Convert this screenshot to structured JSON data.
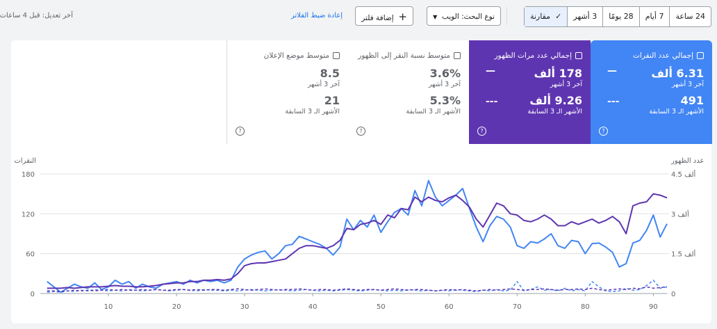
{
  "toolbar": {
    "ranges": [
      "24 ساعة",
      "7 أيام",
      "28 يومًا",
      "3 أشهر"
    ],
    "compare": "مقارنة",
    "search_type": "نوع البحث: الويب",
    "add_filter": "إضافة فلتر",
    "reset": "إعادة ضبط الفلاتر",
    "last_update": "آخر تعديل: قبل 4 ساعات"
  },
  "cards": [
    {
      "title": "إجمالي عدد النقرات",
      "value": "6.31 ألف",
      "period": "آخر 3 أشهر",
      "compare_value": "491",
      "compare_period": "الأشهر الـ 3 السابقة"
    },
    {
      "title": "إجمالي عدد مرات الظهور",
      "value": "178 ألف",
      "period": "آخر 3 أشهر",
      "compare_value": "9.26 ألف",
      "compare_period": "الأشهر الـ 3 السابقة"
    },
    {
      "title": "متوسط نسبة النقر إلى الظهور",
      "value": "3.6%",
      "period": "آخر 3 أشهر",
      "compare_value": "5.3%",
      "compare_period": "الأشهر الـ 3 السابقة"
    },
    {
      "title": "متوسط موضع الإعلان",
      "value": "8.5",
      "period": "آخر 3 أشهر",
      "compare_value": "21",
      "compare_period": "الأشهر الـ 3 السابقة"
    }
  ],
  "chart": {
    "type": "line",
    "ylabel": "النقرات",
    "y2label": "عدد الظهور",
    "x": [
      1,
      2,
      3,
      4,
      5,
      6,
      7,
      8,
      9,
      10,
      11,
      12,
      13,
      14,
      15,
      16,
      17,
      18,
      19,
      20,
      21,
      22,
      23,
      24,
      25,
      26,
      27,
      28,
      29,
      30,
      31,
      32,
      33,
      34,
      35,
      36,
      37,
      38,
      39,
      40,
      41,
      42,
      43,
      44,
      45,
      46,
      47,
      48,
      49,
      50,
      51,
      52,
      53,
      54,
      55,
      56,
      57,
      58,
      59,
      60,
      61,
      62,
      63,
      64,
      65,
      66,
      67,
      68,
      69,
      70,
      71,
      72,
      73,
      74,
      75,
      76,
      77,
      78,
      79,
      80,
      81,
      82,
      83,
      84,
      85,
      86,
      87,
      88,
      89,
      90,
      91,
      92
    ],
    "xlim": [
      0,
      92
    ],
    "xticks": [
      10,
      20,
      30,
      40,
      50,
      60,
      70,
      80,
      90
    ],
    "ylim": [
      0,
      180
    ],
    "yticks": [
      0,
      60,
      120,
      180
    ],
    "y2lim": [
      0,
      4500
    ],
    "y2ticks": [
      0,
      {
        "value": 1500,
        "label": "1.5 ألف"
      },
      {
        "value": 3000,
        "label": "3 ألف"
      },
      {
        "value": 4500,
        "label": "4.5 ألف"
      }
    ],
    "grid": true,
    "series": [
      {
        "color": "#4285f4",
        "dashed": false,
        "values": [
          18,
          10,
          2,
          8,
          14,
          10,
          8,
          16,
          6,
          10,
          20,
          14,
          18,
          8,
          14,
          10,
          8,
          14,
          16,
          18,
          14,
          20,
          16,
          20,
          18,
          20,
          16,
          20,
          40,
          52,
          58,
          62,
          64,
          52,
          60,
          72,
          74,
          86,
          82,
          78,
          74,
          68,
          58,
          70,
          112,
          96,
          110,
          100,
          118,
          92,
          108,
          122,
          128,
          118,
          155,
          132,
          170,
          145,
          132,
          140,
          148,
          158,
          128,
          100,
          78,
          102,
          116,
          112,
          100,
          72,
          68,
          78,
          76,
          82,
          90,
          72,
          68,
          80,
          78,
          60,
          75,
          76,
          70,
          62,
          40,
          45,
          76,
          80,
          95,
          118,
          85,
          105
        ]
      },
      {
        "color": "#5e35b1",
        "dashed": false,
        "axis": "y2",
        "values": [
          200,
          200,
          200,
          225,
          200,
          225,
          250,
          250,
          250,
          275,
          300,
          275,
          275,
          250,
          250,
          275,
          300,
          350,
          375,
          400,
          400,
          450,
          450,
          500,
          500,
          525,
          500,
          550,
          750,
          1050,
          1125,
          1150,
          1150,
          1200,
          1250,
          1300,
          1500,
          1700,
          1800,
          1800,
          1750,
          1700,
          1800,
          2000,
          2450,
          2400,
          2600,
          2650,
          2750,
          2600,
          2950,
          2850,
          3200,
          3150,
          3625,
          3450,
          3625,
          3500,
          3450,
          3600,
          3700,
          3500,
          3250,
          2800,
          2500,
          2950,
          3400,
          3300,
          3000,
          2950,
          2750,
          2700,
          2800,
          2950,
          2800,
          2550,
          2550,
          2700,
          2600,
          2700,
          2800,
          2650,
          2750,
          2900,
          2700,
          2250,
          3300,
          3400,
          3450,
          3750,
          3700,
          3600
        ]
      },
      {
        "color": "#4285f4",
        "dashed": true,
        "values": [
          2,
          3,
          2,
          4,
          3,
          5,
          4,
          6,
          5,
          4,
          5,
          4,
          6,
          5,
          4,
          5,
          6,
          5,
          4,
          5,
          6,
          5,
          4,
          6,
          5,
          5,
          4,
          5,
          4,
          5,
          6,
          5,
          4,
          5,
          6,
          5,
          4,
          5,
          6,
          5,
          4,
          5,
          4,
          5,
          6,
          5,
          4,
          5,
          6,
          5,
          4,
          5,
          4,
          6,
          5,
          4,
          5,
          4,
          5,
          4,
          6,
          5,
          4,
          3,
          5,
          4,
          6,
          4,
          5,
          18,
          4,
          6,
          10,
          5,
          6,
          4,
          8,
          4,
          6,
          4,
          18,
          10,
          4,
          3,
          4,
          8,
          5,
          6,
          12,
          20,
          8,
          10
        ]
      },
      {
        "color": "#5e35b1",
        "dashed": true,
        "axis": "y2",
        "values": [
          100,
          100,
          75,
          100,
          125,
          100,
          125,
          100,
          125,
          150,
          125,
          150,
          125,
          125,
          150,
          125,
          150,
          125,
          125,
          150,
          150,
          125,
          150,
          125,
          150,
          150,
          125,
          150,
          175,
          150,
          125,
          150,
          175,
          150,
          125,
          150,
          150,
          175,
          150,
          125,
          150,
          150,
          125,
          150,
          175,
          150,
          125,
          150,
          150,
          125,
          150,
          175,
          150,
          125,
          150,
          150,
          125,
          100,
          125,
          150,
          125,
          150,
          125,
          100,
          125,
          150,
          125,
          150,
          175,
          150,
          125,
          150,
          150,
          175,
          150,
          125,
          150,
          150,
          175,
          150,
          200,
          150,
          125,
          150,
          175,
          150,
          200,
          175,
          250,
          200,
          225,
          250
        ]
      }
    ]
  }
}
